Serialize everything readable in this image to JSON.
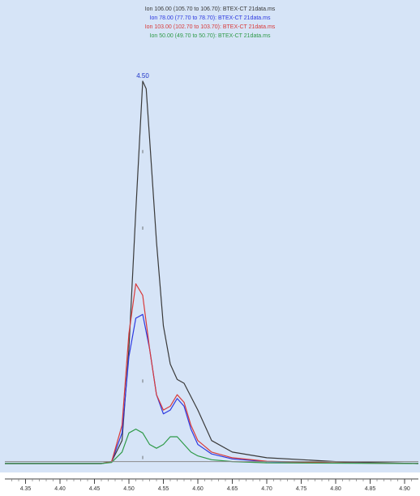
{
  "chart_data": {
    "type": "line",
    "peak_label": "4.50",
    "xlim": [
      4.32,
      4.92
    ],
    "ylim": [
      0,
      100
    ],
    "x_ticks": [
      "4.35",
      "4.40",
      "4.45",
      "4.50",
      "4.55",
      "4.60",
      "4.65",
      "4.70",
      "4.75",
      "4.80",
      "4.85",
      "4.90"
    ],
    "baseline_level": 0.5,
    "series": [
      {
        "name": "Ion 106.00 (105.70 to 106.70): BTEX-CT 21data.ms",
        "color": "#3a3a3a",
        "x": [
          4.32,
          4.46,
          4.475,
          4.49,
          4.5,
          4.51,
          4.52,
          4.525,
          4.53,
          4.54,
          4.55,
          4.56,
          4.57,
          4.58,
          4.6,
          4.62,
          4.65,
          4.7,
          4.8,
          4.92
        ],
        "y": [
          0,
          0,
          0.5,
          6,
          30,
          66,
          100,
          98,
          85,
          58,
          36,
          26,
          22,
          21,
          14,
          6,
          3,
          1.5,
          0.5,
          0
        ]
      },
      {
        "name": "Ion 78.00 (77.70 to 78.70): BTEX-CT 21data.ms",
        "color": "#2e3ae0",
        "x": [
          4.32,
          4.46,
          4.475,
          4.49,
          4.5,
          4.51,
          4.52,
          4.53,
          4.54,
          4.55,
          4.56,
          4.57,
          4.58,
          4.59,
          4.6,
          4.62,
          4.65,
          4.7,
          4.8,
          4.92
        ],
        "y": [
          0,
          0,
          0.5,
          8,
          28,
          38,
          39,
          30,
          18,
          13,
          14,
          17,
          15,
          9,
          5,
          2.5,
          1.2,
          0.5,
          0.2,
          0
        ]
      },
      {
        "name": "Ion 103.00 (102.70 to 103.70): BTEX-CT 21data.ms",
        "color": "#d83a3a",
        "x": [
          4.32,
          4.46,
          4.475,
          4.49,
          4.5,
          4.51,
          4.52,
          4.53,
          4.54,
          4.55,
          4.56,
          4.57,
          4.58,
          4.59,
          4.6,
          4.62,
          4.65,
          4.7,
          4.8,
          4.92
        ],
        "y": [
          0,
          0,
          0.5,
          10,
          34,
          47,
          44,
          30,
          18,
          14,
          15,
          18,
          16,
          10,
          6,
          3,
          1.5,
          0.6,
          0.2,
          0
        ]
      },
      {
        "name": "Ion 50.00 (49.70 to 50.70): BTEX-CT 21data.ms",
        "color": "#2e9a48",
        "x": [
          4.32,
          4.46,
          4.475,
          4.49,
          4.5,
          4.51,
          4.52,
          4.53,
          4.54,
          4.55,
          4.56,
          4.57,
          4.58,
          4.59,
          4.6,
          4.62,
          4.65,
          4.7,
          4.8,
          4.92
        ],
        "y": [
          0,
          0,
          0.3,
          3,
          8,
          9,
          8,
          5,
          4,
          5,
          7,
          7,
          5,
          3,
          2,
          1,
          0.5,
          0.2,
          0.1,
          0
        ]
      }
    ]
  }
}
